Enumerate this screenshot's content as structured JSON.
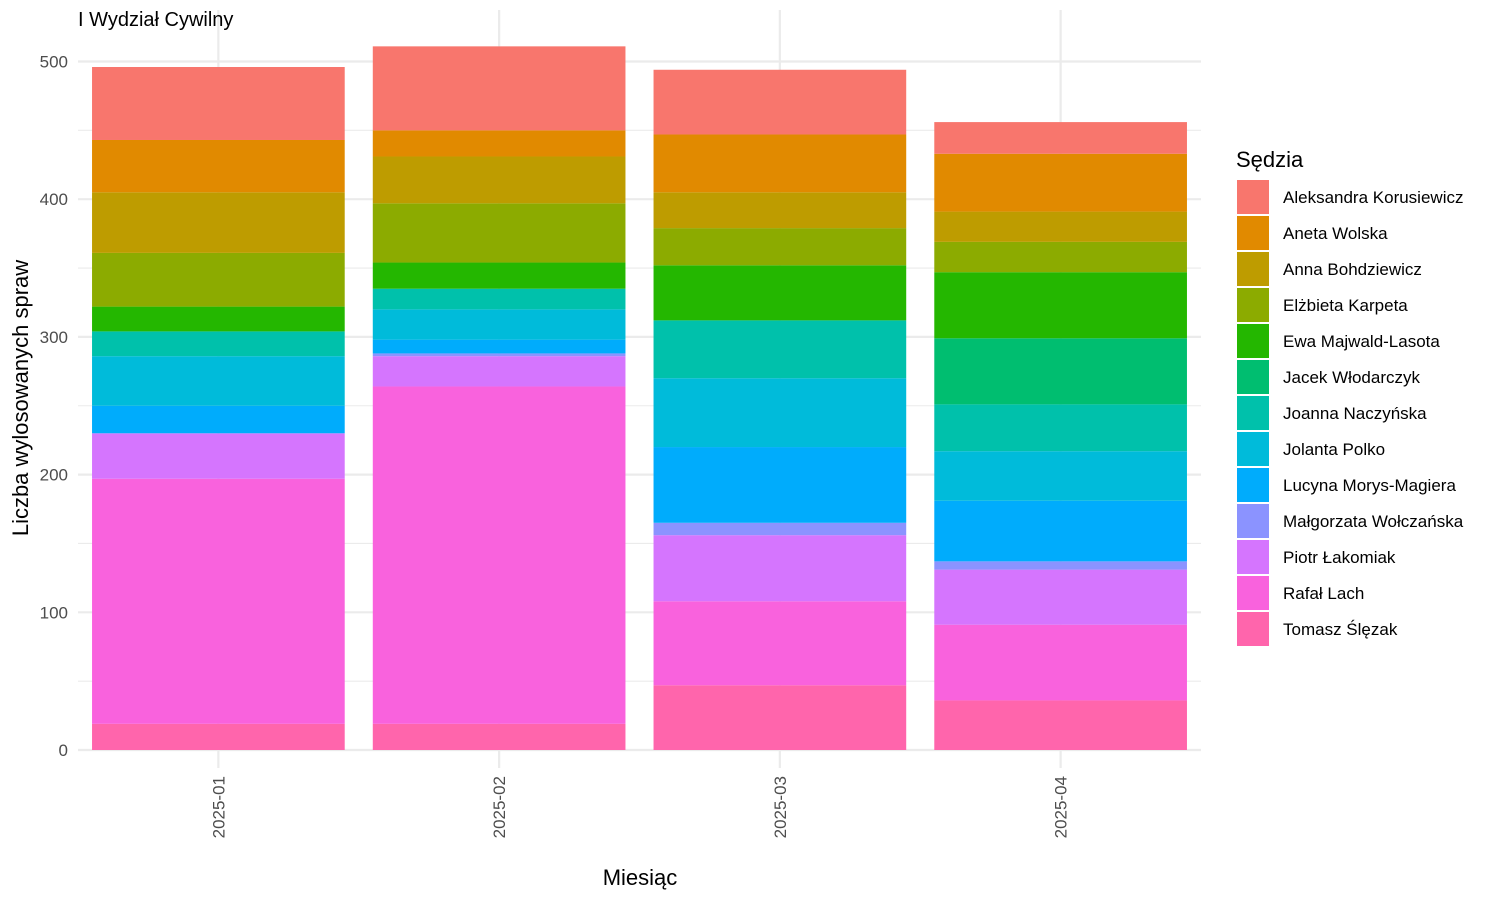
{
  "chart_data": {
    "type": "bar",
    "stacked": true,
    "title": "I Wydział Cywilny",
    "xlabel": "Miesiąc",
    "ylabel": "Liczba wylosowanych spraw",
    "ylim": [
      0,
      512
    ],
    "yticks": [
      0,
      100,
      200,
      300,
      400,
      500
    ],
    "grid": true,
    "legend_title": "Sędzia",
    "legend_position": "right",
    "categories": [
      "2025-01",
      "2025-02",
      "2025-03",
      "2025-04"
    ],
    "series": [
      {
        "name": "Aleksandra Korusiewicz",
        "color": "#F8766D",
        "values": [
          53,
          61,
          47,
          23
        ]
      },
      {
        "name": "Aneta Wolska",
        "color": "#E18A00",
        "values": [
          38,
          19,
          42,
          42
        ]
      },
      {
        "name": "Anna Bohdziewicz",
        "color": "#BE9C00",
        "values": [
          44,
          34,
          26,
          22
        ]
      },
      {
        "name": "Elżbieta Karpeta",
        "color": "#8CAB00",
        "values": [
          39,
          43,
          27,
          22
        ]
      },
      {
        "name": "Ewa Majwald-Lasota",
        "color": "#24B700",
        "values": [
          18,
          19,
          40,
          48
        ]
      },
      {
        "name": "Jacek Włodarczyk",
        "color": "#00BE70",
        "values": [
          0,
          0,
          0,
          48
        ]
      },
      {
        "name": "Joanna Naczyńska",
        "color": "#00C1AB",
        "values": [
          18,
          15,
          42,
          34
        ]
      },
      {
        "name": "Jolanta Polko",
        "color": "#00BBDA",
        "values": [
          36,
          22,
          50,
          36
        ]
      },
      {
        "name": "Lucyna Morys-Magiera",
        "color": "#00ACFC",
        "values": [
          20,
          10,
          55,
          44
        ]
      },
      {
        "name": "Małgorzata Wołczańska",
        "color": "#8B93FF",
        "values": [
          0,
          2,
          9,
          6
        ]
      },
      {
        "name": "Piotr Łakomiak",
        "color": "#D575FE",
        "values": [
          33,
          22,
          48,
          40
        ]
      },
      {
        "name": "Rafał Lach",
        "color": "#F962DD",
        "values": [
          178,
          245,
          61,
          55
        ]
      },
      {
        "name": "Tomasz Ślęzak",
        "color": "#FF65AC",
        "values": [
          19,
          19,
          47,
          36
        ]
      }
    ]
  }
}
